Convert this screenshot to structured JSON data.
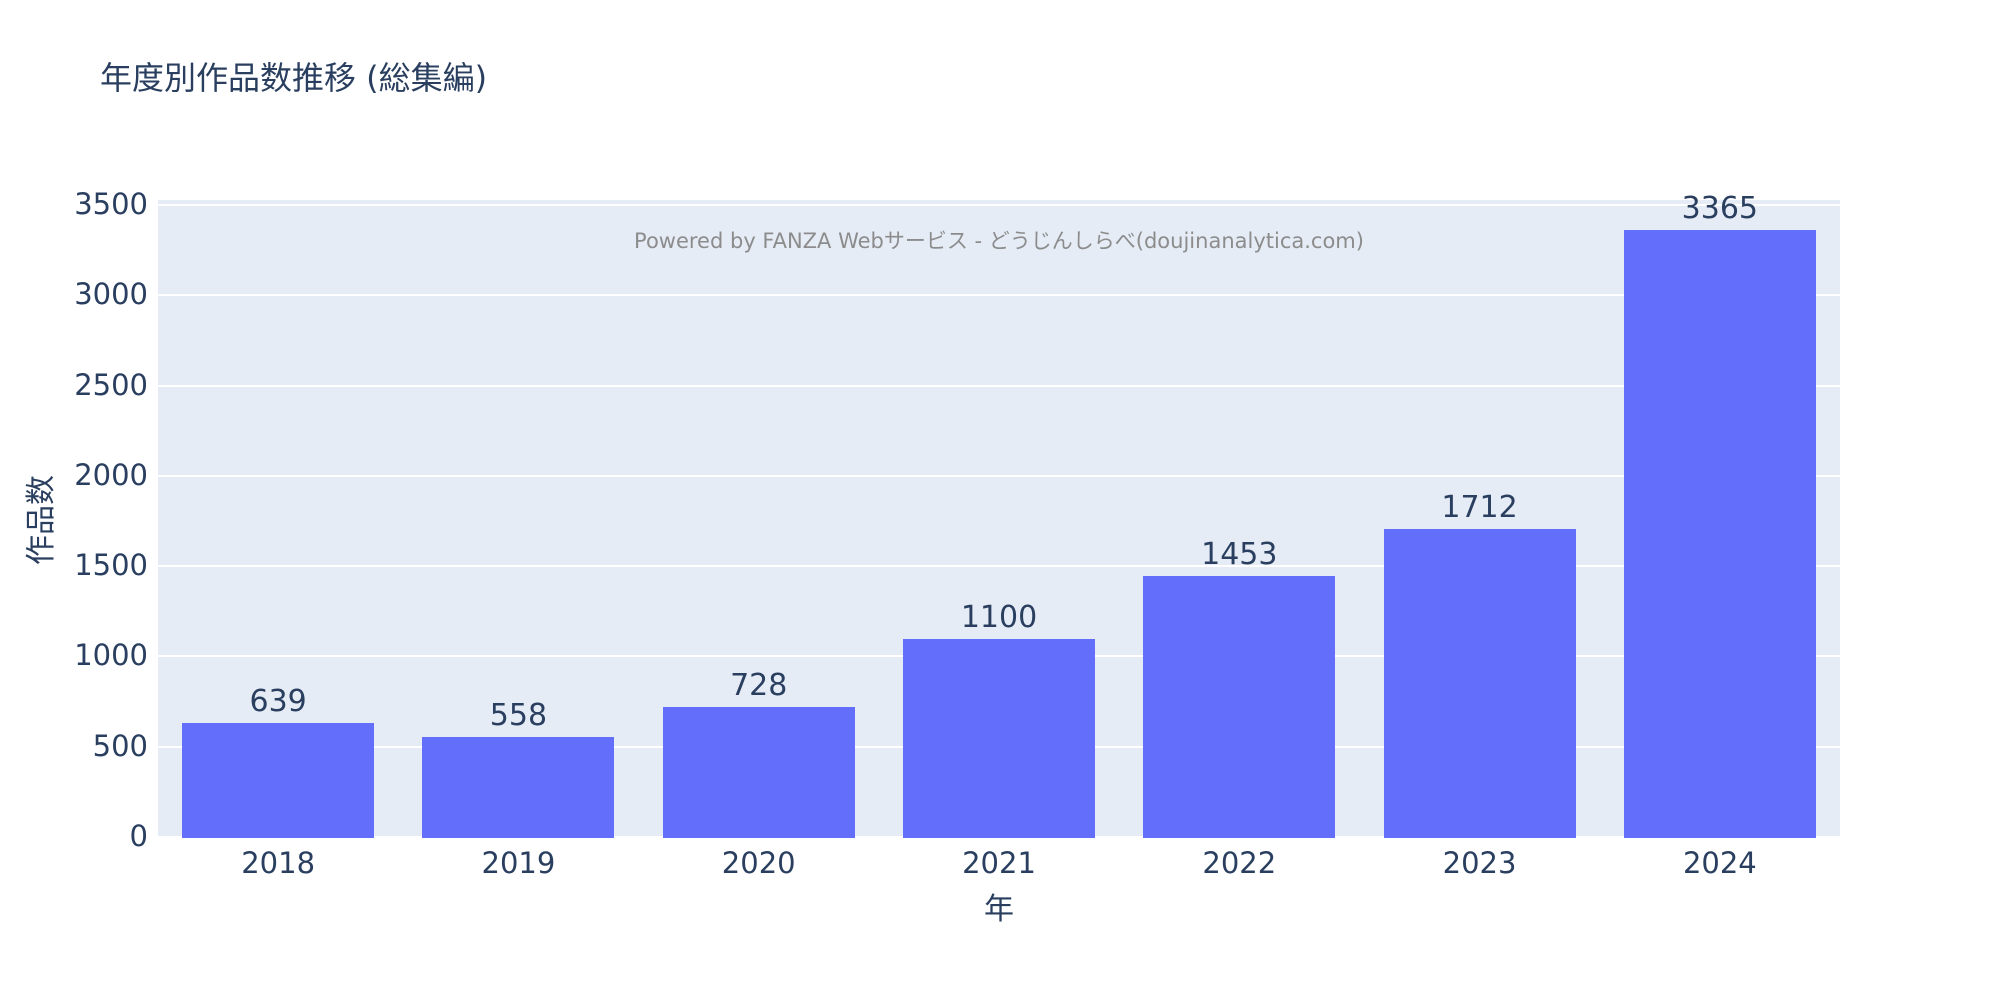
{
  "chart_data": {
    "type": "bar",
    "title": "年度別作品数推移 (総集編)",
    "categories": [
      "2018",
      "2019",
      "2020",
      "2021",
      "2022",
      "2023",
      "2024"
    ],
    "values": [
      639,
      558,
      728,
      1100,
      1453,
      1712,
      3365
    ],
    "xlabel": "年",
    "ylabel": "作品数",
    "ylim": [
      0,
      3500
    ],
    "yticks": [
      0,
      500,
      1000,
      1500,
      2000,
      2500,
      3000,
      3500
    ],
    "grid": true,
    "legend": "none",
    "annotation": "Powered by FANZA Webサービス - どうじんしらべ(doujinanalytica.com)",
    "colors": {
      "bar": "#636efa",
      "plot_bg": "#e5ecf6",
      "grid": "#ffffff",
      "text": "#2a3f5f",
      "annotation_text": "#8c8c8c",
      "page_bg": "#ffffff"
    }
  }
}
